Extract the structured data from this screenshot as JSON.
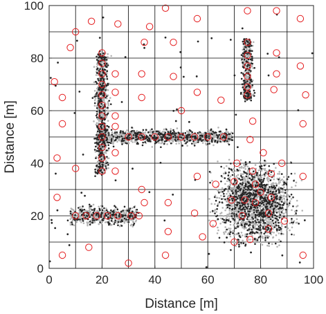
{
  "chart_data": {
    "type": "scatter",
    "title": "",
    "xlabel": "Distance [m]",
    "ylabel": "Distance [m]",
    "xlim": [
      0,
      100
    ],
    "ylim": [
      0,
      100
    ],
    "xticks": [
      0,
      20,
      40,
      60,
      80,
      100
    ],
    "yticks": [
      0,
      20,
      40,
      60,
      80,
      100
    ],
    "grid": "10 m cells",
    "legend": "none",
    "colors": {
      "light_points": "#b3b3b3",
      "dark_points": "#262626",
      "markers": "#e41a1c",
      "grid": "#000000"
    },
    "clusters": [
      {
        "shape": "horizontal-band",
        "x_range": [
          8,
          33
        ],
        "y_center": 20,
        "y_spread": 1.6
      },
      {
        "shape": "vertical-band",
        "x_center": 20,
        "x_spread": 1.2,
        "y_range": [
          36,
          82
        ]
      },
      {
        "shape": "horizontal-band",
        "x_range": [
          18,
          69
        ],
        "y_center": 50,
        "y_spread": 1.2
      },
      {
        "shape": "vertical-band",
        "x_center": 75,
        "x_spread": 0.8,
        "y_range": [
          64,
          87
        ]
      },
      {
        "shape": "blob",
        "x_range": [
          55,
          97
        ],
        "y_range": [
          8,
          42
        ],
        "center": [
          78,
          25
        ]
      }
    ],
    "red_circles": [
      [
        2,
        71
      ],
      [
        5,
        65
      ],
      [
        5,
        55
      ],
      [
        3,
        42
      ],
      [
        3,
        27
      ],
      [
        5,
        5
      ],
      [
        10,
        38
      ],
      [
        8,
        84
      ],
      [
        10,
        90
      ],
      [
        16,
        94
      ],
      [
        15,
        8
      ],
      [
        20,
        82
      ],
      [
        20,
        78
      ],
      [
        20,
        74
      ],
      [
        20,
        70
      ],
      [
        20,
        66
      ],
      [
        20,
        62
      ],
      [
        20,
        58
      ],
      [
        20,
        54
      ],
      [
        20,
        50
      ],
      [
        20,
        46
      ],
      [
        20,
        42
      ],
      [
        20,
        37
      ],
      [
        26,
        93
      ],
      [
        25,
        74
      ],
      [
        25,
        67
      ],
      [
        25,
        58
      ],
      [
        25,
        54
      ],
      [
        25,
        44
      ],
      [
        25,
        37
      ],
      [
        38,
        92
      ],
      [
        36,
        86
      ],
      [
        35,
        74
      ],
      [
        35,
        65
      ],
      [
        35,
        50
      ],
      [
        35,
        30
      ],
      [
        36,
        25
      ],
      [
        30,
        2
      ],
      [
        44,
        99
      ],
      [
        47,
        73
      ],
      [
        45,
        25
      ],
      [
        45,
        14
      ],
      [
        44,
        5
      ],
      [
        47,
        86
      ],
      [
        50,
        60
      ],
      [
        50,
        50
      ],
      [
        10,
        20
      ],
      [
        14,
        20
      ],
      [
        18,
        20
      ],
      [
        22,
        20
      ],
      [
        26,
        20
      ],
      [
        31,
        20
      ],
      [
        34,
        20
      ],
      [
        40,
        50
      ],
      [
        45,
        50
      ],
      [
        55,
        50
      ],
      [
        60,
        50
      ],
      [
        66,
        50
      ],
      [
        30,
        50
      ],
      [
        56,
        95
      ],
      [
        56,
        67
      ],
      [
        55,
        21
      ],
      [
        58,
        12
      ],
      [
        65,
        64
      ],
      [
        63,
        32
      ],
      [
        62,
        17
      ],
      [
        56,
        35
      ],
      [
        69,
        26
      ],
      [
        70,
        33
      ],
      [
        71,
        40
      ],
      [
        70,
        10
      ],
      [
        75,
        98
      ],
      [
        75,
        86
      ],
      [
        75,
        81
      ],
      [
        75,
        77
      ],
      [
        75,
        73
      ],
      [
        75,
        69
      ],
      [
        75,
        66
      ],
      [
        77,
        56
      ],
      [
        76,
        49
      ],
      [
        78,
        32
      ],
      [
        77,
        37
      ],
      [
        73,
        20
      ],
      [
        76,
        11
      ],
      [
        78,
        25
      ],
      [
        83,
        21
      ],
      [
        83,
        15
      ],
      [
        84,
        27
      ],
      [
        84,
        36
      ],
      [
        86,
        98
      ],
      [
        86,
        82
      ],
      [
        85,
        68
      ],
      [
        86,
        74
      ],
      [
        89,
        18
      ],
      [
        88,
        40
      ],
      [
        95,
        95
      ],
      [
        95,
        77
      ],
      [
        96,
        55
      ],
      [
        96,
        35
      ],
      [
        97,
        66
      ],
      [
        96,
        5
      ],
      [
        80,
        29
      ],
      [
        81,
        44
      ],
      [
        74,
        26
      ]
    ]
  }
}
